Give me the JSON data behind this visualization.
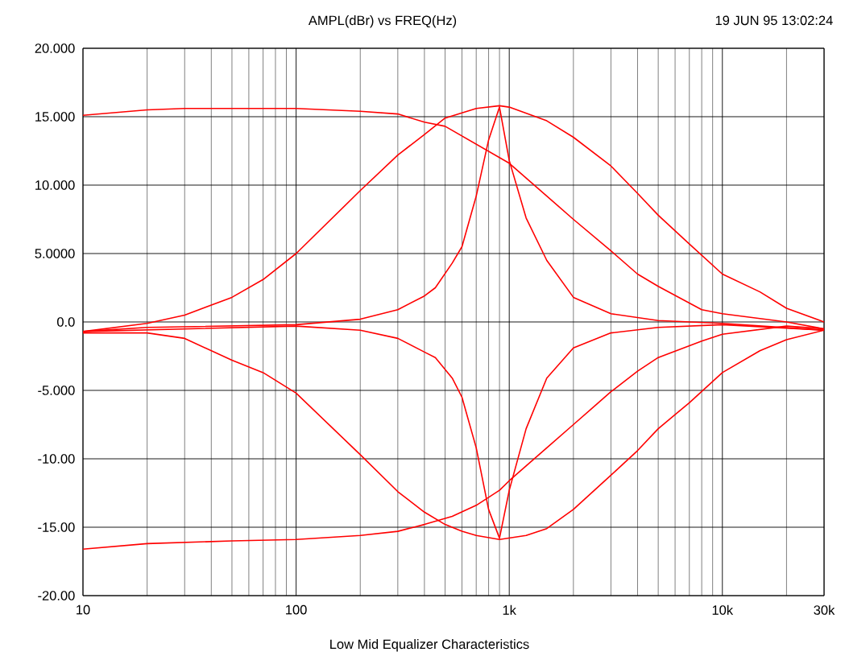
{
  "chart_data": {
    "type": "line",
    "title": "AMPL(dBr) vs  FREQ(Hz)",
    "xlabel": "Low Mid Equalizer Characteristics",
    "annotations": [
      "19 JUN 95 13:02:24"
    ],
    "log": "x",
    "grid": true,
    "marker": "none",
    "line_style": "solid",
    "xlim": [
      10,
      30000
    ],
    "ylim": [
      -20,
      20
    ],
    "xticks": [
      10,
      100,
      {
        "value": 1000,
        "label": "1k"
      },
      {
        "value": 10000,
        "label": "10k"
      },
      {
        "value": 30000,
        "label": "30k"
      }
    ],
    "yticks": [
      {
        "value": 20,
        "label": "20.000"
      },
      {
        "value": 15,
        "label": "15.000"
      },
      {
        "value": 10,
        "label": "10.000"
      },
      {
        "value": 5,
        "label": "5.0000"
      },
      {
        "value": 0,
        "label": "0.0"
      },
      {
        "value": -5,
        "label": "-5.000"
      },
      {
        "value": -10,
        "label": "-10.00"
      },
      {
        "value": -15,
        "label": "-15.00"
      },
      {
        "value": -20,
        "label": "-20.00"
      }
    ],
    "series": [
      {
        "color": "#ff0000",
        "x": [
          10,
          20,
          30,
          50,
          100,
          200,
          300,
          400,
          500,
          1000,
          2000,
          3000,
          4000,
          5000,
          8000,
          10000,
          20000,
          30000
        ],
        "values": [
          15.1,
          15.5,
          15.6,
          15.6,
          15.6,
          15.4,
          15.2,
          14.6,
          14.3,
          11.6,
          7.5,
          5.2,
          3.5,
          2.6,
          0.9,
          0.6,
          0.0,
          -0.5
        ]
      },
      {
        "color": "#ff0000",
        "x": [
          10,
          20,
          30,
          50,
          70,
          100,
          200,
          300,
          400,
          500,
          700,
          900,
          1000,
          1500,
          2000,
          3000,
          4000,
          5000,
          7000,
          10000,
          15000,
          20000,
          30000
        ],
        "values": [
          -0.7,
          -0.1,
          0.5,
          1.8,
          3.1,
          5.0,
          9.6,
          12.2,
          13.7,
          14.9,
          15.6,
          15.8,
          15.7,
          14.7,
          13.5,
          11.4,
          9.4,
          7.8,
          5.7,
          3.5,
          2.2,
          1.0,
          0.0
        ]
      },
      {
        "color": "#ff0000",
        "x": [
          10,
          20,
          100,
          200,
          300,
          400,
          450,
          540,
          600,
          700,
          800,
          900,
          1000,
          1200,
          1500,
          2000,
          3000,
          5000,
          10000,
          30000
        ],
        "values": [
          -0.7,
          -0.4,
          -0.2,
          0.2,
          0.9,
          1.9,
          2.5,
          4.3,
          5.5,
          9.2,
          13.3,
          15.7,
          11.8,
          7.6,
          4.5,
          1.8,
          0.6,
          0.1,
          -0.1,
          -0.6
        ]
      },
      {
        "color": "#ff0000",
        "x": [
          10,
          100,
          200,
          300,
          400,
          450,
          540,
          600,
          700,
          800,
          900,
          1000,
          1200,
          1500,
          2000,
          3000,
          5000,
          10000,
          30000
        ],
        "values": [
          -0.7,
          -0.3,
          -0.6,
          -1.2,
          -2.2,
          -2.6,
          -4.1,
          -5.5,
          -9.2,
          -13.7,
          -15.8,
          -12.3,
          -7.8,
          -4.1,
          -1.9,
          -0.8,
          -0.4,
          -0.2,
          -0.6
        ]
      },
      {
        "color": "#ff0000",
        "x": [
          10,
          20,
          30,
          50,
          70,
          100,
          200,
          300,
          400,
          500,
          600,
          700,
          900,
          1200,
          1500,
          2000,
          3000,
          4000,
          5000,
          7000,
          10000,
          15000,
          20000,
          30000
        ],
        "values": [
          -0.8,
          -0.8,
          -1.2,
          -2.8,
          -3.7,
          -5.2,
          -9.7,
          -12.4,
          -13.9,
          -14.8,
          -15.3,
          -15.6,
          -15.9,
          -15.6,
          -15.1,
          -13.7,
          -11.2,
          -9.4,
          -7.8,
          -5.9,
          -3.7,
          -2.1,
          -1.3,
          -0.6
        ]
      },
      {
        "color": "#ff0000",
        "x": [
          10,
          20,
          50,
          100,
          200,
          300,
          400,
          540,
          700,
          900,
          1000,
          1500,
          2000,
          3000,
          4000,
          5000,
          8000,
          10000,
          20000,
          30000
        ],
        "values": [
          -16.6,
          -16.2,
          -16.0,
          -15.9,
          -15.6,
          -15.3,
          -14.8,
          -14.2,
          -13.4,
          -12.3,
          -11.6,
          -9.2,
          -7.5,
          -5.1,
          -3.6,
          -2.6,
          -1.4,
          -0.9,
          -0.3,
          -0.5
        ]
      }
    ]
  }
}
